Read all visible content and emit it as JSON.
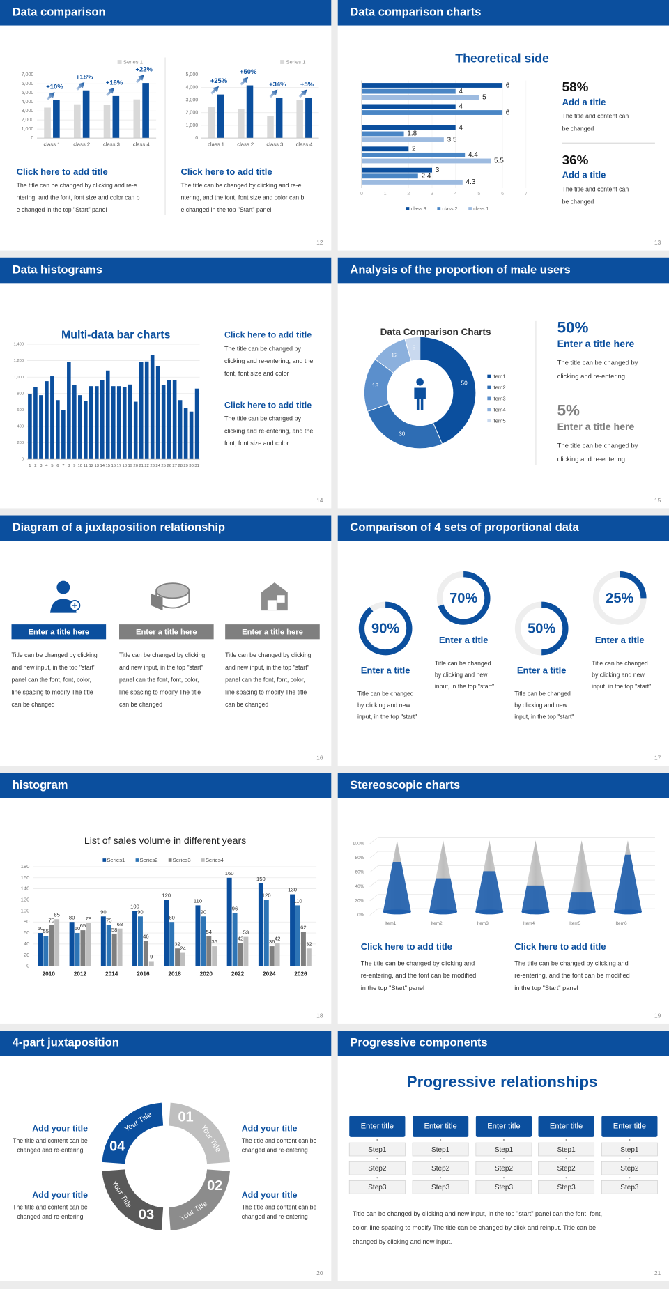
{
  "slides": [
    {
      "title": "Data comparison",
      "page": "12",
      "charts": [
        {
          "type": "bar",
          "categories": [
            "class 1",
            "class 2",
            "class 3",
            "class 4"
          ],
          "series": [
            {
              "name": "Series 1",
              "color": "#d9d9d9",
              "values": [
                3360,
                3730,
                3640,
                4270
              ]
            },
            {
              "color": "#0b4f9e",
              "values": [
                4180,
                5270,
                4640,
                6090
              ]
            }
          ],
          "annotations": [
            "+10%",
            "+18%",
            "+16%",
            "+22%"
          ],
          "ylim": [
            0,
            7000
          ],
          "grid": true,
          "yticks": [
            0,
            {
              "value": 1000,
              "label": "1,000"
            },
            {
              "value": 2000,
              "label": "2,000"
            },
            {
              "value": 3000,
              "label": "3,000"
            },
            {
              "value": 4000,
              "label": "4,000"
            },
            {
              "value": 5000,
              "label": "5,000"
            },
            {
              "value": 6000,
              "label": "6,000"
            },
            {
              "value": 7000,
              "label": "7,000"
            }
          ]
        },
        {
          "type": "bar",
          "categories": [
            "class 1",
            "class 2",
            "class 3",
            "class 4"
          ],
          "series": [
            {
              "name": "Series 1",
              "color": "#d9d9d9",
              "values": [
                2470,
                2270,
                1750,
                2990
              ]
            },
            {
              "color": "#0b4f9e",
              "values": [
                3440,
                4160,
                3180,
                3180
              ]
            }
          ],
          "annotations": [
            "+25%",
            "+50%",
            "+34%",
            "+5%"
          ],
          "ylim": [
            0,
            5000
          ],
          "grid": true,
          "yticks": [
            0,
            {
              "value": 1000,
              "label": "1,000"
            },
            {
              "value": 2000,
              "label": "2,000"
            },
            {
              "value": 3000,
              "label": "3,000"
            },
            {
              "value": 4000,
              "label": "4,000"
            },
            {
              "value": 5000,
              "label": "5,000"
            }
          ]
        }
      ],
      "blocks": [
        {
          "title": "Click here to add title",
          "lines": [
            "The title can be changed by clicking and re-e",
            "ntering, and the font, font size and color can b",
            "e changed in the top \"Start\" panel"
          ]
        },
        {
          "title": "Click here to add title",
          "lines": [
            "The title can be changed by clicking and re-e",
            "ntering, and the font, font size and color can b",
            "e changed in the top \"Start\" panel"
          ]
        }
      ]
    },
    {
      "title": "Data comparison charts",
      "page": "13",
      "chart": {
        "type": "bar",
        "orientation": "horizontal",
        "title": "Theoretical side",
        "categories": [
          null,
          null,
          null,
          null,
          null
        ],
        "series": [
          {
            "name": "class 3",
            "color": "#0b4f9e",
            "values": [
              6,
              4,
              4,
              2,
              3
            ]
          },
          {
            "name": "class 2",
            "color": "#4a86c5",
            "values": [
              4,
              6,
              1.8,
              4.4,
              2.4
            ]
          },
          {
            "name": "class 1",
            "color": "#9dbbe0",
            "values": [
              5,
              null,
              3.5,
              5.5,
              4.3
            ]
          }
        ],
        "xlim": [
          0,
          7
        ],
        "xticks": [
          0,
          1,
          2,
          3,
          4,
          5,
          6,
          7
        ]
      },
      "stats": [
        {
          "value": "58%",
          "title": "Add a title",
          "lines": [
            "The title and content can",
            "be changed"
          ]
        },
        {
          "value": "36%",
          "title": "Add a title",
          "lines": [
            "The title and content can",
            "be changed"
          ]
        }
      ]
    },
    {
      "title": "Data histograms",
      "page": "14",
      "chart": {
        "type": "bar",
        "title": "Multi-data bar charts",
        "categories": [
          "1",
          "2",
          "3",
          "4",
          "5",
          "6",
          "7",
          "8",
          "9",
          "10",
          "11",
          "12",
          "13",
          "14",
          "15",
          "16",
          "17",
          "18",
          "19",
          "20",
          "21",
          "22",
          "23",
          "24",
          "25",
          "26",
          "27",
          "28",
          "29",
          "30",
          "31"
        ],
        "values": [
          790,
          880,
          780,
          950,
          1010,
          720,
          600,
          1180,
          900,
          780,
          710,
          890,
          890,
          960,
          1080,
          890,
          890,
          880,
          910,
          700,
          1180,
          1190,
          1270,
          1130,
          900,
          960,
          960,
          720,
          620,
          580,
          860
        ],
        "color": "#0b4f9e",
        "ylim": [
          0,
          1400
        ],
        "grid": true,
        "yticks": [
          0,
          200,
          400,
          600,
          800,
          {
            "value": 1000,
            "label": "1,000"
          },
          {
            "value": 1200,
            "label": "1,200"
          },
          {
            "value": 1400,
            "label": "1,400"
          }
        ]
      },
      "blocks": [
        {
          "title": "Click here to add title",
          "lines": [
            "The title can be changed by",
            "clicking and re-entering, and the",
            "font, font size and color"
          ]
        },
        {
          "title": "Click here to add title",
          "lines": [
            "The title can be changed by",
            "clicking and re-entering, and the",
            "font, font size and color"
          ]
        }
      ]
    },
    {
      "title": "Analysis of the proportion of male users",
      "page": "15",
      "chart": {
        "type": "pie",
        "title": "Data Comparison Charts",
        "categories": [
          "Item1",
          "Item2",
          "Item3",
          "Item4",
          "Item5"
        ],
        "values": [
          50,
          30,
          18,
          12,
          5
        ],
        "colors": [
          "#0b4f9e",
          "#2e6db4",
          "#5b8fcc",
          "#8bb0dd",
          "#c9d9ef"
        ]
      },
      "stats": [
        {
          "value": "50%",
          "title": "Enter a title here",
          "lines": [
            "The title can be changed by",
            "clicking and re-entering"
          ]
        },
        {
          "value": "5%",
          "title": "Enter a title here",
          "lines": [
            "The title can be changed by",
            "clicking and re-entering"
          ]
        }
      ]
    },
    {
      "title": "Diagram of a juxtaposition relationship",
      "page": "16",
      "columns": [
        {
          "title": "Enter a title here",
          "lines": [
            "Title can be changed by clicking",
            "and new input, in the top \"start\"",
            "panel can the font, font, color,",
            "line spacing to modify The title",
            "can be changed"
          ]
        },
        {
          "title": "Enter a title here",
          "lines": [
            "Title can be changed by clicking",
            "and new input, in the top \"start\"",
            "panel can the font, font, color,",
            "line spacing to modify The title",
            "can be changed"
          ]
        },
        {
          "title": "Enter a title here",
          "lines": [
            "Title can be changed by clicking",
            "and new input, in the top \"start\"",
            "panel can the font, font, color,",
            "line spacing to modify The title",
            "can be changed"
          ]
        }
      ]
    },
    {
      "title": "Comparison of 4 sets of proportional data",
      "page": "17",
      "chart": {
        "type": "progress",
        "values": [
          90,
          70,
          50,
          25
        ],
        "value_labels": [
          "90%",
          "70%",
          "50%",
          "25%"
        ],
        "ylim": [
          0,
          100
        ],
        "color": "#0b4f9e"
      },
      "items": [
        {
          "title": "Enter a title",
          "lines": [
            "Title can be changed",
            "by clicking and new",
            "input, in the top \"start\""
          ]
        },
        {
          "title": "Enter a title",
          "lines": [
            "Title can be changed",
            "by clicking and new",
            "input, in the top \"start\""
          ]
        },
        {
          "title": "Enter a title",
          "lines": [
            "Title can be changed",
            "by clicking and new",
            "input, in the top \"start\""
          ]
        },
        {
          "title": "Enter a title",
          "lines": [
            "Title can be changed",
            "by clicking and new",
            "input, in the top \"start\""
          ]
        }
      ]
    },
    {
      "title": "histogram",
      "page": "18",
      "chart": {
        "type": "bar",
        "title": "List of sales volume in different years",
        "categories": [
          "2010",
          "2012",
          "2014",
          "2016",
          "2018",
          "2020",
          "2022",
          "2024",
          "2026"
        ],
        "series": [
          {
            "name": "Series1",
            "color": "#0b4f9e",
            "values": [
              60,
              80,
              90,
              100,
              120,
              110,
              160,
              150,
              130
            ]
          },
          {
            "name": "Series2",
            "color": "#2e75b6",
            "values": [
              55,
              60,
              75,
              90,
              80,
              90,
              96,
              120,
              110
            ]
          },
          {
            "name": "Series3",
            "color": "#7f7f7f",
            "values": [
              75,
              65,
              58,
              46,
              32,
              54,
              42,
              36,
              62
            ]
          },
          {
            "name": "Series4",
            "color": "#bfbfbf",
            "values": [
              85,
              78,
              68,
              9,
              24,
              36,
              53,
              42,
              32
            ]
          }
        ],
        "ylim": [
          0,
          180
        ],
        "yticks": [
          0,
          20,
          40,
          60,
          80,
          100,
          120,
          140,
          160,
          180
        ],
        "grid": true
      }
    },
    {
      "title": "Stereoscopic charts",
      "page": "19",
      "chart": {
        "type": "cone",
        "categories": [
          "Item1",
          "Item2",
          "Item3",
          "Item4",
          "Item5",
          "Item6"
        ],
        "values": [
          70,
          47,
          57,
          37,
          28,
          80
        ],
        "color": "#1f5fae",
        "ylim": [
          0,
          100
        ],
        "yticks": [
          {
            "value": 0,
            "label": "0%"
          },
          {
            "value": 20,
            "label": "20%"
          },
          {
            "value": 40,
            "label": "40%"
          },
          {
            "value": 60,
            "label": "60%"
          },
          {
            "value": 80,
            "label": "80%"
          },
          {
            "value": 100,
            "label": "100%"
          }
        ]
      },
      "blocks": [
        {
          "title": "Click here to add title",
          "lines": [
            "The title can be changed by clicking and",
            "re-entering, and the font can be modified",
            "in the top \"Start\" panel"
          ]
        },
        {
          "title": "Click here to add title",
          "lines": [
            "The title can be changed by clicking and",
            "re-entering, and the font can be modified",
            "in the top \"Start\" panel"
          ]
        }
      ]
    },
    {
      "title": "4-part juxtaposition",
      "page": "20",
      "segments": [
        {
          "number": "01",
          "label": "Your Title"
        },
        {
          "number": "02",
          "label": "Your Title"
        },
        {
          "number": "03",
          "label": "Your Title"
        },
        {
          "number": "04",
          "label": "Your Title"
        }
      ],
      "items": [
        {
          "title": "Add your title",
          "lines": [
            "The title and content can be",
            "changed and re-entering"
          ]
        },
        {
          "title": "Add your title",
          "lines": [
            "The title and content can be",
            "changed and re-entering"
          ]
        },
        {
          "title": "Add your title",
          "lines": [
            "The title and content can be",
            "changed and re-entering"
          ]
        },
        {
          "title": "Add your title",
          "lines": [
            "The title and content can be",
            "changed and re-entering"
          ]
        }
      ]
    },
    {
      "title": "Progressive components",
      "page": "21",
      "heading": "Progressive relationships",
      "columns": [
        {
          "title": "Enter title",
          "steps": [
            "Step1",
            "Step2",
            "Step3"
          ]
        },
        {
          "title": "Enter title",
          "steps": [
            "Step1",
            "Step2",
            "Step3"
          ]
        },
        {
          "title": "Enter title",
          "steps": [
            "Step1",
            "Step2",
            "Step3"
          ]
        },
        {
          "title": "Enter title",
          "steps": [
            "Step1",
            "Step2",
            "Step3"
          ]
        },
        {
          "title": "Enter title",
          "steps": [
            "Step1",
            "Step2",
            "Step3"
          ]
        }
      ],
      "lines": [
        "Title can be changed by clicking and new input, in the top \"start\" panel can the font, font,",
        "color, line spacing to modify The title can be changed by click and reinput. Title can be",
        "changed by clicking and new input."
      ]
    }
  ]
}
